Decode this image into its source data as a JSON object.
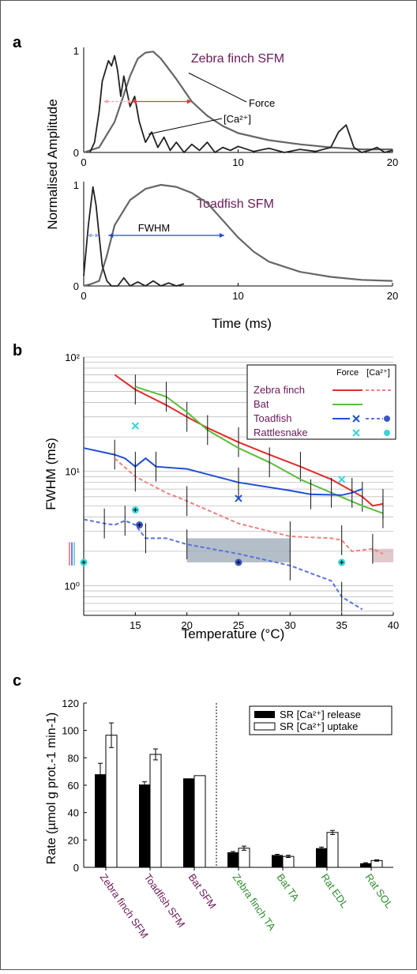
{
  "panels": {
    "a": {
      "label": "a",
      "ylabel": "Normalised Amplitude",
      "xlabel": "Time (ms)",
      "annotations": {
        "force": "Force",
        "ca": "[Ca²⁺]",
        "fwhm": "FWHM"
      },
      "top": {
        "title": "Zebra finch SFM",
        "xlim": [
          0,
          20
        ],
        "ylim": [
          0,
          1
        ],
        "xticks": [
          0,
          10,
          20
        ],
        "yticks": [
          0,
          1
        ],
        "force": {
          "x": [
            0,
            1,
            2,
            3,
            3.5,
            4,
            4.5,
            5,
            6,
            7,
            8,
            9,
            10,
            12,
            14,
            16,
            18,
            20
          ],
          "y": [
            0,
            0.05,
            0.3,
            0.75,
            0.92,
            0.98,
            0.99,
            0.92,
            0.72,
            0.5,
            0.36,
            0.26,
            0.19,
            0.12,
            0.08,
            0.05,
            0.03,
            0.03
          ]
        },
        "ca": {
          "x": [
            0.4,
            0.7,
            1,
            1.2,
            1.4,
            1.6,
            1.8,
            2,
            2.2,
            2.4,
            2.6,
            2.8,
            3,
            3.3,
            3.6,
            4,
            4.4,
            4.8,
            5.2,
            5.6,
            6,
            6.5,
            7,
            7.5,
            8,
            8.5,
            9,
            9.5,
            10,
            11,
            12,
            13,
            14,
            15,
            16,
            16.5,
            17,
            17.5,
            18,
            18.5,
            19,
            19.5,
            20
          ],
          "y": [
            0,
            0.1,
            0.4,
            0.7,
            0.8,
            0.9,
            0.85,
            0.95,
            0.8,
            0.55,
            0.75,
            0.6,
            0.45,
            0.55,
            0.3,
            0.1,
            0.2,
            0.05,
            0.15,
            0.02,
            0.1,
            0.0,
            0.08,
            0.02,
            0.1,
            0.0,
            0.05,
            0.02,
            0.06,
            0.01,
            0.04,
            0.0,
            0.03,
            0.01,
            0.05,
            0.2,
            0.27,
            0.05,
            0.0,
            0.02,
            0.05,
            0.0,
            0.02
          ]
        },
        "force_fwhm": [
          3.1,
          7.0
        ],
        "ca_fwhm": [
          1.3,
          3.1
        ]
      },
      "bottom": {
        "title": "Toadfish SFM",
        "xlim": [
          0,
          20
        ],
        "ylim": [
          0,
          1
        ],
        "xticks": [
          0,
          10,
          20
        ],
        "yticks": [
          0,
          1
        ],
        "force": {
          "x": [
            0,
            0.5,
            1,
            1.5,
            2,
            3,
            4,
            5,
            6,
            7,
            8,
            9,
            10,
            11,
            12,
            14,
            16,
            18,
            20
          ],
          "y": [
            0,
            0.02,
            0.05,
            0.3,
            0.6,
            0.85,
            0.96,
            1.0,
            0.98,
            0.92,
            0.82,
            0.65,
            0.48,
            0.34,
            0.24,
            0.14,
            0.09,
            0.06,
            0.05
          ]
        },
        "ca": {
          "x": [
            0,
            0.3,
            0.6,
            0.8,
            1.0,
            1.2,
            1.5,
            1.8,
            2.2,
            2.6,
            3,
            3.5,
            4,
            4.5,
            5,
            5.5,
            6,
            6.5
          ],
          "y": [
            0.1,
            0.6,
            0.98,
            0.8,
            0.5,
            0.2,
            0.05,
            0.0,
            0.0,
            0.08,
            0.0,
            0.04,
            0.0,
            0.05,
            0.0,
            0.03,
            0.0,
            0.02
          ]
        },
        "force_fwhm": [
          1.6,
          9.1
        ],
        "ca_fwhm": [
          0.25,
          1.0
        ]
      }
    },
    "b": {
      "label": "b",
      "type": "line",
      "xlabel": "Temperature (°C)",
      "ylabel": "FWHM (ms)",
      "xlim": [
        10,
        40
      ],
      "ylim": [
        0.55,
        100
      ],
      "yscale": "log",
      "xticks": [
        15,
        20,
        25,
        30,
        35,
        40
      ],
      "ytick_labels": [
        "10⁰",
        "10¹",
        "10²"
      ],
      "ytick_values": [
        1,
        10,
        100
      ],
      "legend": {
        "placement": "top-right",
        "header_force": "Force",
        "header_ca": "[Ca²⁺]",
        "entries": [
          "Zebra finch",
          "Bat",
          "Toadfish",
          "Rattlesnake"
        ]
      },
      "colors": {
        "zebra": "#e32b2b",
        "zebra_ca": "#f08080",
        "bat": "#5bbd3c",
        "toadfish": "#1f4fd6",
        "toadfish_ca": "#5a73db",
        "rattlesnake": "#35d6d6"
      },
      "series": [
        {
          "name": "Zebra finch",
          "kind": "force",
          "x": [
            13,
            15,
            18,
            20,
            22,
            25,
            28,
            31,
            34,
            37,
            38,
            39
          ],
          "y": [
            70,
            52,
            38,
            30,
            24,
            18,
            14,
            11,
            8.5,
            6,
            5,
            5.2
          ]
        },
        {
          "name": "Bat",
          "kind": "force",
          "x": [
            15,
            18,
            20,
            22,
            25,
            28,
            31,
            34,
            37,
            39
          ],
          "y": [
            55,
            45,
            33,
            23,
            16,
            12,
            8.5,
            6.5,
            5,
            4.3
          ]
        },
        {
          "name": "Toadfish",
          "kind": "force",
          "x": [
            10,
            13,
            14,
            15,
            16,
            17,
            20,
            25,
            30,
            32,
            35,
            36,
            37
          ],
          "y": [
            16,
            14,
            13,
            11,
            13,
            11,
            10.5,
            8,
            6.8,
            6.3,
            6.2,
            6.5,
            7
          ]
        },
        {
          "name": "Zebra finch",
          "kind": "ca",
          "x": [
            13,
            15,
            18,
            20,
            25,
            30,
            34,
            35,
            36,
            38,
            39
          ],
          "y": [
            13,
            9,
            6.5,
            5.5,
            3.5,
            2.7,
            2.6,
            2.5,
            2.0,
            2.1,
            1.9
          ]
        },
        {
          "name": "Toadfish",
          "kind": "ca",
          "x": [
            10,
            12,
            13,
            14,
            15,
            16,
            18,
            20,
            25,
            30,
            34,
            35,
            37
          ],
          "y": [
            3.8,
            3.5,
            3.4,
            3.7,
            3.4,
            2.6,
            2.6,
            2.3,
            1.9,
            1.5,
            1.1,
            0.8,
            0.62
          ]
        }
      ],
      "toadfish_ca_markers": [
        {
          "x": 15.4,
          "y": 3.4
        },
        {
          "x": 25,
          "y": 1.6
        }
      ],
      "rattlesnake_force": [
        {
          "x": 15,
          "y": 25
        },
        {
          "x": 35,
          "y": 8.5
        }
      ],
      "rattlesnake_ca": [
        {
          "x": 15,
          "y": 4.6
        },
        {
          "x": 35,
          "y": 1.6
        },
        {
          "x": 10,
          "y": 1.6
        }
      ],
      "toadfish_force_cross": {
        "x": 25,
        "y": 5.8
      },
      "shaded_regions": [
        {
          "x": [
            20,
            30
          ],
          "y": [
            1.6,
            2.6
          ],
          "color": "#9aa8b6"
        },
        {
          "x": [
            38,
            40
          ],
          "y": [
            1.6,
            2.1
          ],
          "color": "#d7b5b8"
        }
      ]
    },
    "c": {
      "label": "c",
      "type": "bar",
      "ylabel": "Rate (µmol g prot.-1 min-1)",
      "ylim": [
        0,
        120
      ],
      "yticks": [
        0,
        20,
        40,
        60,
        80,
        100,
        120
      ],
      "categories": [
        "Zebra finch SFM",
        "Toadfish SFM",
        "Bat SFM",
        "Zebra finch TA",
        "Bat TA",
        "Rat EDL",
        "Rat SOL"
      ],
      "category_colors": [
        "#6a1a5a",
        "#6a1a5a",
        "#6a1a5a",
        "#2e8b2e",
        "#2e8b2e",
        "#2e8b2e",
        "#2e8b2e"
      ],
      "series": [
        {
          "name": "SR [Ca²⁺] release",
          "values": [
            68,
            60.5,
            65,
            11,
            9,
            14,
            3
          ],
          "errors": [
            8,
            2,
            0,
            0.6,
            0.5,
            0.8,
            0.4
          ]
        },
        {
          "name": "SR [Ca²⁺] uptake",
          "values": [
            96.5,
            82.5,
            67,
            14,
            8,
            25.5,
            5
          ],
          "errors": [
            9,
            4,
            0,
            1.5,
            0.8,
            1.5,
            0.5
          ]
        }
      ],
      "legend": {
        "placement": "top-right"
      }
    }
  }
}
